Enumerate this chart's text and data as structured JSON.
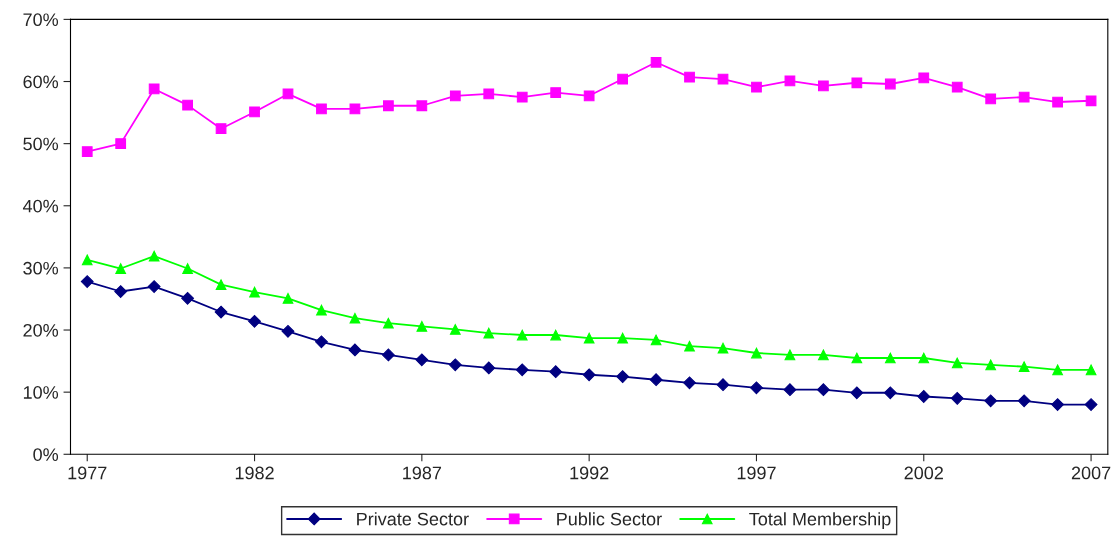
{
  "chart_data": {
    "type": "line",
    "x": [
      1977,
      1978,
      1979,
      1980,
      1981,
      1982,
      1983,
      1984,
      1985,
      1986,
      1987,
      1988,
      1989,
      1990,
      1991,
      1992,
      1993,
      1994,
      1995,
      1996,
      1997,
      1998,
      1999,
      2000,
      2001,
      2002,
      2003,
      2004,
      2005,
      2006,
      2007
    ],
    "series": [
      {
        "name": "Private Sector",
        "color": "#000080",
        "marker": "diamond",
        "values": [
          27.8,
          26.2,
          27.0,
          25.1,
          22.9,
          21.4,
          19.8,
          18.1,
          16.8,
          16.0,
          15.2,
          14.4,
          13.9,
          13.6,
          13.3,
          12.8,
          12.5,
          12.0,
          11.5,
          11.2,
          10.7,
          10.4,
          10.4,
          9.9,
          9.9,
          9.3,
          9.0,
          8.6,
          8.6,
          8.0,
          8.0
        ]
      },
      {
        "name": "Public Sector",
        "color": "#ff00ff",
        "marker": "square",
        "values": [
          48.7,
          50.0,
          58.8,
          56.2,
          52.4,
          55.1,
          58.0,
          55.6,
          55.6,
          56.1,
          56.1,
          57.7,
          58.0,
          57.5,
          58.2,
          57.7,
          60.4,
          63.1,
          60.7,
          60.4,
          59.1,
          60.1,
          59.3,
          59.8,
          59.6,
          60.6,
          59.1,
          57.2,
          57.5,
          56.7,
          56.9
        ]
      },
      {
        "name": "Total Membership",
        "color": "#00ff00",
        "marker": "triangle",
        "values": [
          31.3,
          29.9,
          31.9,
          29.9,
          27.3,
          26.1,
          25.1,
          23.2,
          21.9,
          21.1,
          20.6,
          20.1,
          19.5,
          19.2,
          19.2,
          18.7,
          18.7,
          18.4,
          17.4,
          17.1,
          16.3,
          16.0,
          16.0,
          15.5,
          15.5,
          15.5,
          14.7,
          14.4,
          14.1,
          13.6,
          13.6
        ]
      }
    ],
    "xlim": [
      1976.5,
      2007.5
    ],
    "xticks": [
      1977,
      1982,
      1987,
      1992,
      1997,
      2002,
      2007
    ],
    "ylim": [
      0,
      70
    ],
    "yticks": [
      {
        "value": 0,
        "label": "0%"
      },
      {
        "value": 10,
        "label": "10%"
      },
      {
        "value": 20,
        "label": "20%"
      },
      {
        "value": 30,
        "label": "30%"
      },
      {
        "value": 40,
        "label": "40%"
      },
      {
        "value": 50,
        "label": "50%"
      },
      {
        "value": 60,
        "label": "60%"
      },
      {
        "value": 70,
        "label": "70%"
      }
    ],
    "grid": false,
    "legend": "bottom",
    "line_style": "solid"
  }
}
